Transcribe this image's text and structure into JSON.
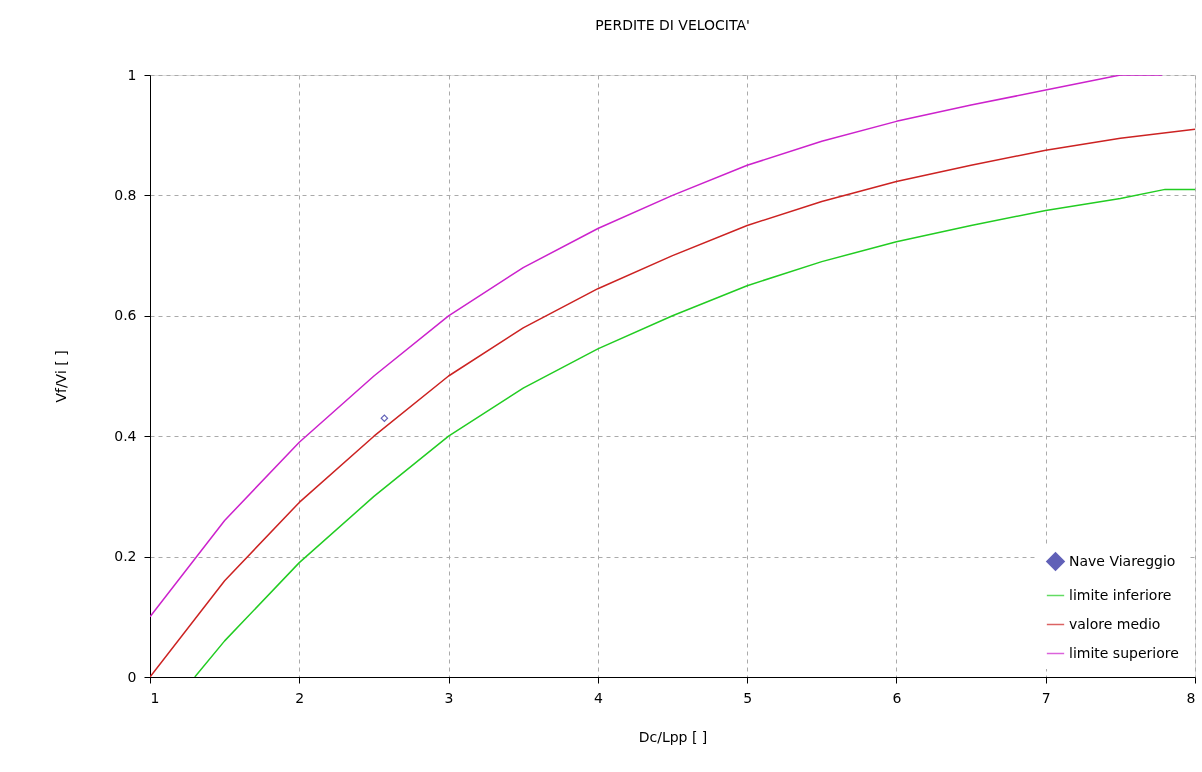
{
  "chart_data": {
    "type": "line",
    "title": "PERDITE DI VELOCITA'",
    "xlabel": "Dc/Lpp [ ]",
    "ylabel": "Vf/Vi [ ]",
    "xlim": [
      1,
      8
    ],
    "xticks": [
      1,
      2,
      3,
      4,
      5,
      6,
      7,
      8
    ],
    "ylim": [
      0,
      1
    ],
    "yticks": [
      0,
      0.2,
      0.4,
      0.6,
      0.8,
      1
    ],
    "grid": true,
    "legend": "bottom right",
    "line_style": "solid",
    "series": [
      {
        "name": "Nave Viareggio",
        "type": "scatter",
        "marker": "diamond",
        "color": "#1e1e9a",
        "x": [
          2.57
        ],
        "values": [
          0.43
        ]
      },
      {
        "name": "limite inferiore",
        "color": "#22cc22",
        "x": [
          1.3,
          1.5,
          2,
          2.5,
          3,
          3.5,
          4,
          4.5,
          5,
          5.5,
          6,
          6.5,
          7,
          7.5,
          7.8,
          8
        ],
        "values": [
          0,
          0.06,
          0.19,
          0.3,
          0.4,
          0.48,
          0.545,
          0.6,
          0.65,
          0.69,
          0.723,
          0.75,
          0.775,
          0.795,
          0.81,
          0.81
        ]
      },
      {
        "name": "valore medio",
        "color": "#cc2222",
        "x": [
          1,
          1.5,
          2,
          2.5,
          3,
          3.5,
          4,
          4.5,
          5,
          5.5,
          6,
          6.5,
          7,
          7.5,
          8
        ],
        "values": [
          0,
          0.16,
          0.29,
          0.4,
          0.5,
          0.58,
          0.645,
          0.7,
          0.75,
          0.79,
          0.823,
          0.85,
          0.875,
          0.895,
          0.91
        ]
      },
      {
        "name": "limite superiore",
        "color": "#cc22cc",
        "x": [
          1,
          1.5,
          2,
          2.5,
          3,
          3.5,
          4,
          4.5,
          5,
          5.5,
          6,
          6.5,
          7,
          7.5,
          7.78
        ],
        "values": [
          0.1,
          0.26,
          0.39,
          0.5,
          0.6,
          0.68,
          0.745,
          0.8,
          0.85,
          0.89,
          0.923,
          0.95,
          0.975,
          1.0,
          1.0
        ]
      }
    ]
  }
}
